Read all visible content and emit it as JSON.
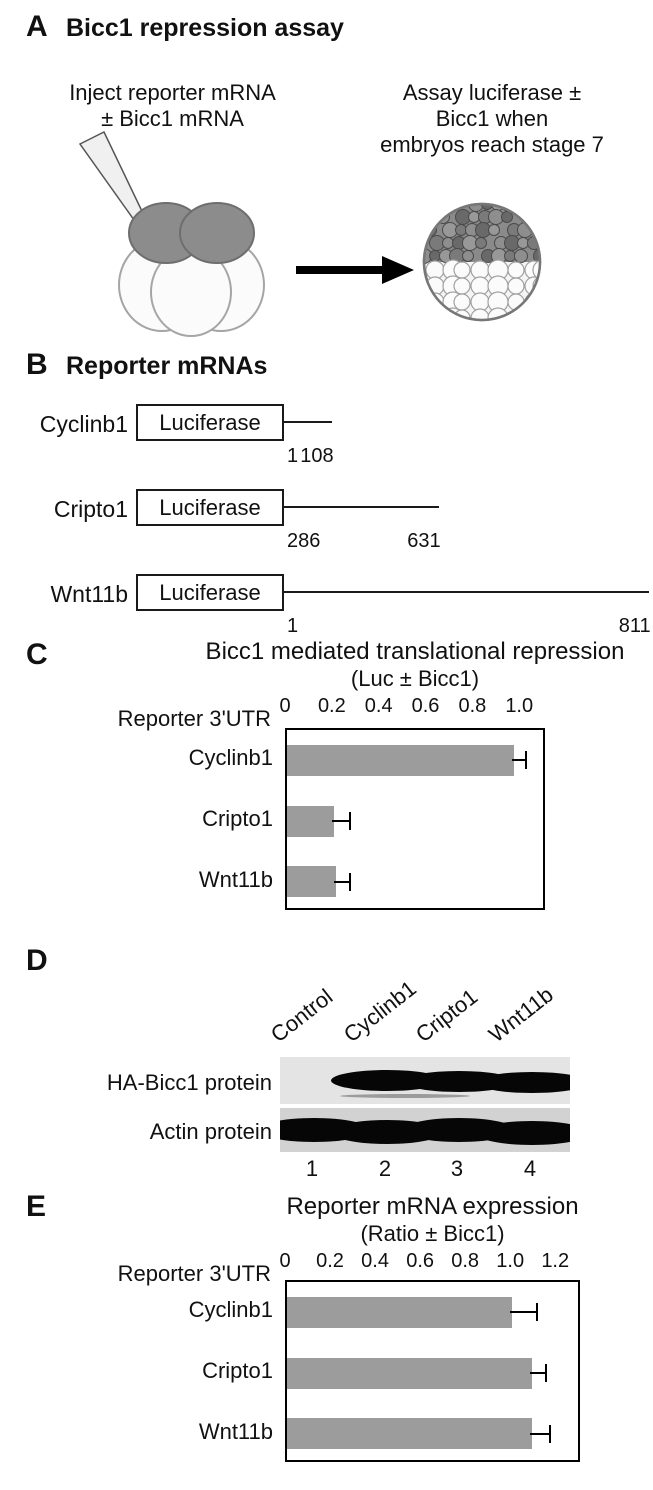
{
  "colors": {
    "bar_fill": "#9c9c9c",
    "band_black": "#060606",
    "blot_bg_top": "#e4e4e4",
    "blot_bg_bottom": "#d2d2d2"
  },
  "panelA": {
    "label": "A",
    "title": "Bicc1 repression assay",
    "inject_lines": [
      "Inject reporter mRNA",
      "± Bicc1 mRNA"
    ],
    "assay_lines": [
      "Assay luciferase ±",
      "Bicc1 when",
      "embryos reach stage 7"
    ]
  },
  "panelB": {
    "label": "B",
    "title": "Reporter mRNAs",
    "constructs": [
      {
        "name": "Cyclinb1",
        "box": "Luciferase",
        "start_label": "1",
        "end_label": "108",
        "start": 1,
        "end": 108
      },
      {
        "name": "Cripto1",
        "box": "Luciferase",
        "start_label": "286",
        "end_label": "631",
        "start": 286,
        "end": 631
      },
      {
        "name": "Wnt11b",
        "box": "Luciferase",
        "start_label": "1",
        "end_label": "811",
        "start": 1,
        "end": 811
      }
    ]
  },
  "panelC": {
    "label": "C"
  },
  "panelD": {
    "label": "D",
    "lane_labels": [
      "Control",
      "Cyclinb1",
      "Cripto1",
      "Wnt11b"
    ],
    "rows": [
      {
        "label": "HA-Bicc1 protein",
        "bands": [
          false,
          true,
          true,
          true
        ]
      },
      {
        "label": "Actin protein",
        "bands": [
          true,
          true,
          true,
          true
        ]
      }
    ],
    "lane_numbers": [
      "1",
      "2",
      "3",
      "4"
    ]
  },
  "panelE": {
    "label": "E"
  },
  "chart_data": [
    {
      "id": "chartC",
      "type": "bar",
      "orientation": "horizontal",
      "axis_position": "top",
      "title": "Bicc1 mediated translational repression",
      "subtitle": "(Luc ± Bicc1)",
      "axis_label": "Reporter 3'UTR",
      "categories": [
        "Cyclinb1",
        "Cripto1",
        "Wnt11b"
      ],
      "values": [
        0.97,
        0.2,
        0.21
      ],
      "errors": [
        0.05,
        0.07,
        0.06
      ],
      "xlim": [
        0,
        1.11
      ],
      "xtick_labels": [
        "0",
        "0.2",
        "0.4",
        "0.6",
        "0.8",
        "1.0"
      ],
      "bar_color": "#9c9c9c",
      "grid": false,
      "legend": "none"
    },
    {
      "id": "chartE",
      "type": "bar",
      "orientation": "horizontal",
      "axis_position": "top",
      "title": "Reporter mRNA expression",
      "subtitle": "(Ratio ± Bicc1)",
      "axis_label": "Reporter 3'UTR",
      "categories": [
        "Cyclinb1",
        "Cripto1",
        "Wnt11b"
      ],
      "values": [
        1.0,
        1.09,
        1.09
      ],
      "errors": [
        0.11,
        0.06,
        0.08
      ],
      "xlim": [
        0,
        1.31
      ],
      "xtick_labels": [
        "0",
        "0.2",
        "0.4",
        "0.6",
        "0.8",
        "1.0",
        "1.2"
      ],
      "bar_color": "#9c9c9c",
      "grid": false,
      "legend": "none"
    }
  ]
}
